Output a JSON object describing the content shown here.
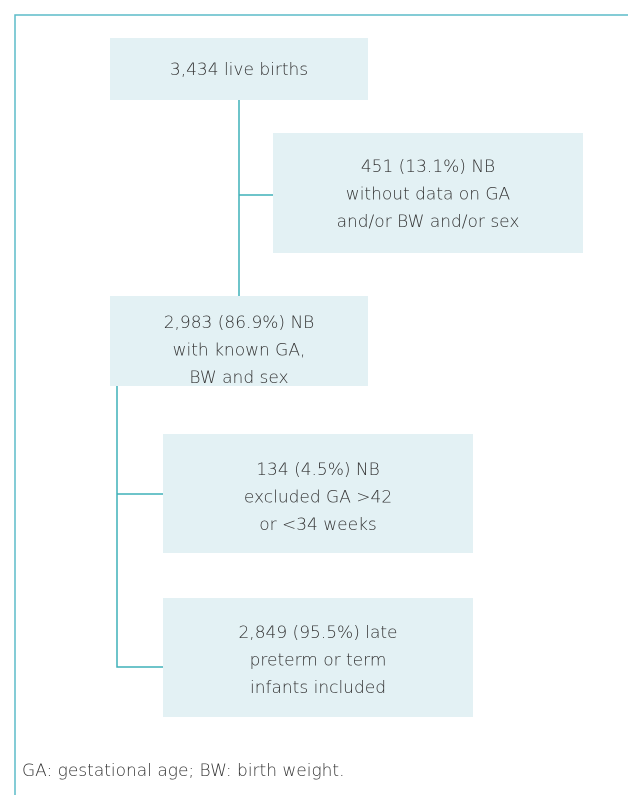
{
  "nodes": [
    {
      "lines": [
        "3,434 live births"
      ]
    },
    {
      "lines": [
        "451 (13.1%) NB",
        "without data on GA",
        "and/or BW and/or sex"
      ]
    },
    {
      "lines": [
        "2,983 (86.9%) NB",
        "with known GA,",
        "BW and sex"
      ]
    },
    {
      "lines": [
        "134 (4.5%) NB",
        "excluded GA >42",
        "or <34 weeks"
      ]
    },
    {
      "lines": [
        "2,849 (95.5%) late",
        "preterm or term",
        "infants included"
      ]
    }
  ],
  "footnote": "GA: gestational age; BW: birth weight."
}
